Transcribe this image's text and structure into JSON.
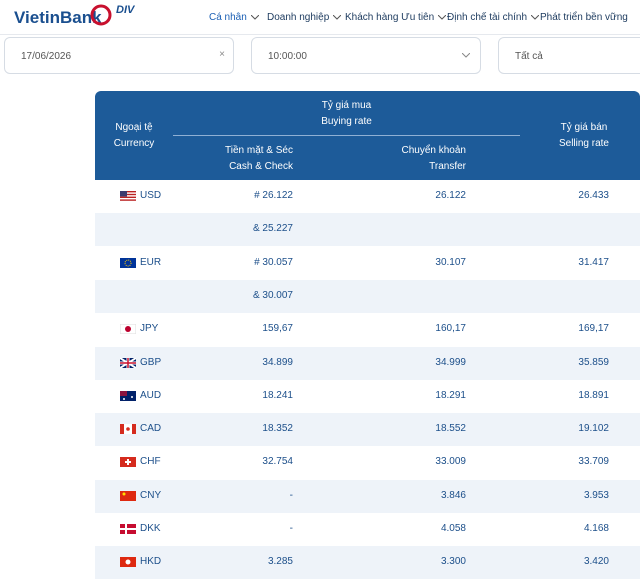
{
  "header": {
    "logo": "VietinBank",
    "badge": "DIV",
    "nav": [
      "Cá nhân",
      "Doanh nghiệp",
      "Khách hàng Ưu tiên",
      "Định chế tài chính",
      "Phát triển bền vững"
    ]
  },
  "filters": {
    "date": "17/06/2026",
    "time": "10:00:00",
    "type": "Tất cả"
  },
  "table": {
    "headers": {
      "currency": [
        "Ngoại tệ",
        "Currency"
      ],
      "buying": [
        "Tỷ giá mua",
        "Buying rate"
      ],
      "cash": [
        "Tiền mặt & Séc",
        "Cash & Check"
      ],
      "transfer": [
        "Chuyển khoản",
        "Transfer"
      ],
      "selling": [
        "Tỷ giá bán",
        "Selling rate"
      ]
    },
    "rows": [
      {
        "code": "USD",
        "cash": "# 26.122",
        "transfer": "26.122",
        "selling": "26.433"
      },
      {
        "cash": "& 25.227"
      },
      {
        "code": "EUR",
        "cash": "# 30.057",
        "transfer": "30.107",
        "selling": "31.417"
      },
      {
        "cash": "& 30.007"
      },
      {
        "code": "JPY",
        "cash": "159,67",
        "transfer": "160,17",
        "selling": "169,17"
      },
      {
        "code": "GBP",
        "cash": "34.899",
        "transfer": "34.999",
        "selling": "35.859"
      },
      {
        "code": "AUD",
        "cash": "18.241",
        "transfer": "18.291",
        "selling": "18.891"
      },
      {
        "code": "CAD",
        "cash": "18.352",
        "transfer": "18.552",
        "selling": "19.102"
      },
      {
        "code": "CHF",
        "cash": "32.754",
        "transfer": "33.009",
        "selling": "33.709"
      },
      {
        "code": "CNY",
        "cash": "-",
        "transfer": "3.846",
        "selling": "3.953"
      },
      {
        "code": "DKK",
        "cash": "-",
        "transfer": "4.058",
        "selling": "4.168"
      },
      {
        "code": "HKD",
        "cash": "3.285",
        "transfer": "3.300",
        "selling": "3.420"
      }
    ]
  }
}
